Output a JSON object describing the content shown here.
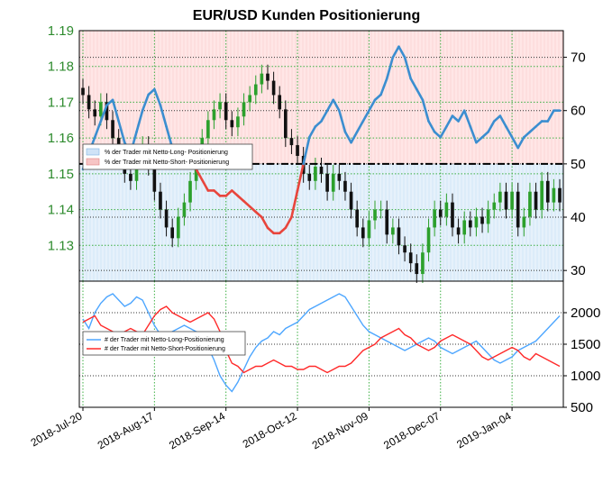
{
  "chart_data": [
    {
      "type": "candlestick",
      "title": "EUR/USD Kunden Positionierung",
      "left_axis": {
        "ticks": [
          "1.19",
          "1.18",
          "1.17",
          "1.16",
          "1.15",
          "1.14",
          "1.13"
        ],
        "ylim": [
          1.12,
          1.19
        ],
        "color": "#2e8b2e"
      },
      "right_axis": {
        "ticks": [
          "70",
          "60",
          "50",
          "40",
          "30"
        ],
        "ylim": [
          28,
          75
        ]
      },
      "x_ticks": [
        "2018-Jul-20",
        "2018-Aug-17",
        "2018-Sep-14",
        "2018-Oct-12",
        "2018-Nov-09",
        "2018-Dec-07",
        "2019-Jan-04"
      ],
      "legend": [
        "% der Trader mit Netto-Long- Positionierung",
        "% der Trader mit Netto-Short- Positionierung"
      ],
      "legend_position": "upper-left",
      "reference_line": 50,
      "grid": true,
      "price_close": [
        1.172,
        1.168,
        1.166,
        1.17,
        1.165,
        1.16,
        1.155,
        1.15,
        1.148,
        1.155,
        1.158,
        1.152,
        1.145,
        1.14,
        1.135,
        1.132,
        1.138,
        1.142,
        1.148,
        1.155,
        1.16,
        1.165,
        1.168,
        1.17,
        1.165,
        1.163,
        1.166,
        1.17,
        1.172,
        1.175,
        1.178,
        1.176,
        1.172,
        1.168,
        1.16,
        1.158,
        1.155,
        1.15,
        1.148,
        1.152,
        1.15,
        1.145,
        1.15,
        1.148,
        1.145,
        1.14,
        1.135,
        1.132,
        1.137,
        1.14,
        1.14,
        1.133,
        1.135,
        1.13,
        1.128,
        1.125,
        1.122,
        1.128,
        1.135,
        1.14,
        1.138,
        1.142,
        1.135,
        1.133,
        1.137,
        1.135,
        1.138,
        1.136,
        1.14,
        1.142,
        1.145,
        1.14,
        1.145,
        1.135,
        1.138,
        1.145,
        1.14,
        1.148,
        1.142,
        1.146,
        1.142
      ],
      "long_pct": [
        49,
        52,
        55,
        58,
        61,
        62,
        58,
        54,
        52,
        56,
        60,
        63,
        64,
        61,
        57,
        53,
        50,
        50,
        50,
        49,
        47,
        45,
        45,
        44,
        44,
        45,
        44,
        43,
        42,
        41,
        40,
        38,
        37,
        37,
        38,
        40,
        45,
        50,
        55,
        57,
        58,
        60,
        62,
        60,
        56,
        54,
        56,
        58,
        60,
        62,
        63,
        66,
        70,
        72,
        70,
        66,
        64,
        62,
        58,
        56,
        55,
        57,
        59,
        58,
        60,
        57,
        54,
        55,
        56,
        58,
        59,
        57,
        55,
        53,
        55,
        56,
        57,
        58,
        58,
        60,
        60
      ],
      "short_pct": [
        51,
        48,
        45,
        42,
        39,
        38,
        42,
        46,
        48,
        44,
        40,
        37,
        36,
        39,
        43,
        47,
        50,
        50,
        50,
        51,
        53,
        55,
        55,
        56,
        56,
        55,
        56,
        57,
        58,
        59,
        60,
        62,
        63,
        63,
        62,
        60,
        55,
        50,
        45,
        43,
        42,
        40,
        38,
        40,
        44,
        46,
        44,
        42,
        40,
        38,
        37,
        34,
        30,
        28,
        30,
        34,
        36,
        38,
        42,
        44,
        45,
        43,
        41,
        42,
        40,
        43,
        46,
        45,
        44,
        42,
        41,
        43,
        45,
        47,
        45,
        44,
        43,
        42,
        42,
        40,
        40
      ]
    },
    {
      "type": "line",
      "legend": [
        "# der Trader mit Netto-Long-Positionierung",
        "# der Trader mit Netto-Short-Positionierung"
      ],
      "legend_position": "upper-left",
      "right_axis": {
        "ticks": [
          "2000",
          "1500",
          "1000",
          "500"
        ],
        "ylim": [
          500,
          2500
        ]
      },
      "grid": true,
      "series": [
        {
          "color": "#4da6ff",
          "values": [
            1900,
            1750,
            2000,
            2150,
            2250,
            2300,
            2200,
            2100,
            2150,
            2250,
            2200,
            2000,
            1800,
            1650,
            1600,
            1700,
            1750,
            1800,
            1750,
            1700,
            1650,
            1450,
            1250,
            1000,
            850,
            750,
            900,
            1100,
            1300,
            1450,
            1550,
            1600,
            1700,
            1650,
            1750,
            1800,
            1850,
            1950,
            2050,
            2100,
            2150,
            2200,
            2250,
            2300,
            2250,
            2100,
            1950,
            1800,
            1700,
            1650,
            1600,
            1550,
            1500,
            1450,
            1400,
            1450,
            1500,
            1550,
            1600,
            1550,
            1450,
            1400,
            1350,
            1400,
            1450,
            1500,
            1550,
            1450,
            1350,
            1250,
            1200,
            1250,
            1300,
            1400,
            1450,
            1500,
            1550,
            1650,
            1750,
            1850,
            1950
          ]
        },
        {
          "color": "#ff2a2a",
          "values": [
            1850,
            1900,
            1950,
            1800,
            1750,
            1700,
            1650,
            1700,
            1750,
            1700,
            1650,
            1800,
            1950,
            2050,
            2100,
            2000,
            1950,
            1900,
            1850,
            1900,
            1950,
            2000,
            1900,
            1700,
            1400,
            1200,
            1150,
            1050,
            1100,
            1150,
            1150,
            1200,
            1250,
            1200,
            1150,
            1150,
            1100,
            1100,
            1150,
            1150,
            1100,
            1050,
            1100,
            1150,
            1150,
            1200,
            1300,
            1400,
            1450,
            1500,
            1600,
            1650,
            1700,
            1750,
            1650,
            1600,
            1500,
            1450,
            1400,
            1450,
            1550,
            1600,
            1650,
            1600,
            1550,
            1500,
            1400,
            1300,
            1250,
            1300,
            1350,
            1400,
            1450,
            1400,
            1300,
            1250,
            1350,
            1300,
            1250,
            1200,
            1150
          ]
        }
      ]
    }
  ]
}
